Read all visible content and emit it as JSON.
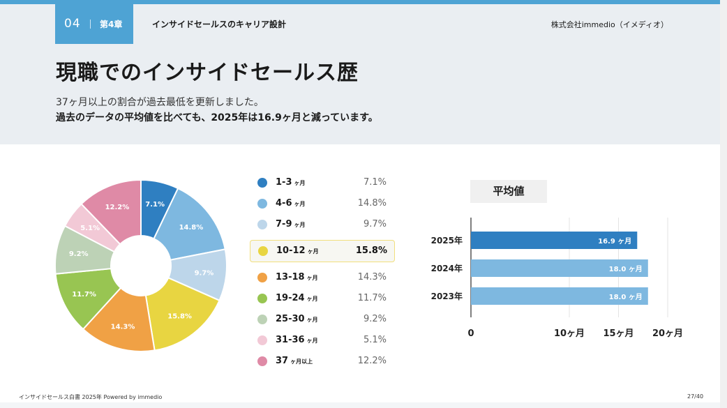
{
  "header": {
    "chapter_number": "04",
    "chapter_label": "第4章",
    "chapter_title": "インサイドセールスのキャリア設計",
    "company": "株式会社immedio（イメディオ）"
  },
  "title": "現職でのインサイドセールス歴",
  "subtitle_line1": "37ヶ月以上の割合が過去最低を更新しました。",
  "subtitle_line2": "過去のデータの平均値を比べても、2025年は16.9ヶ月と減っています。",
  "colors": {
    "accent": "#4ea3d4",
    "bar_2025": "#2f7fc1",
    "bar_past": "#7eb8e0"
  },
  "chart_data": [
    {
      "type": "pie",
      "categories": [
        "1-3",
        "4-6",
        "7-9",
        "10-12",
        "13-18",
        "19-24",
        "25-30",
        "31-36",
        "37"
      ],
      "units": [
        "ヶ月",
        "ヶ月",
        "ヶ月",
        "ヶ月",
        "ヶ月",
        "ヶ月",
        "ヶ月",
        "ヶ月",
        "ヶ月以上"
      ],
      "values": [
        7.1,
        14.8,
        9.7,
        15.8,
        14.3,
        11.7,
        9.2,
        5.1,
        12.2
      ],
      "labels": [
        "7.1%",
        "14.8%",
        "9.7%",
        "15.8%",
        "14.3%",
        "11.7%",
        "9.2%",
        "5.1%",
        "12.2%"
      ],
      "colors": [
        "#2f7fc1",
        "#7eb8e0",
        "#bdd6ea",
        "#e8d541",
        "#f0a145",
        "#98c552",
        "#bdd2b6",
        "#f2c9d6",
        "#df8aa6"
      ],
      "highlight_index": 3,
      "donut": true
    },
    {
      "type": "bar",
      "orientation": "horizontal",
      "title": "平均値",
      "categories": [
        "2025年",
        "2024年",
        "2023年"
      ],
      "values": [
        16.9,
        18.0,
        18.0
      ],
      "labels": [
        "16.9 ヶ月",
        "18.0 ヶ月",
        "18.0 ヶ月"
      ],
      "bar_colors": [
        "#2f7fc1",
        "#7eb8e0",
        "#7eb8e0"
      ],
      "xticks": [
        0,
        10,
        15,
        20
      ],
      "xtick_labels": [
        "0",
        "10ヶ月",
        "15ヶ月",
        "20ヶ月"
      ],
      "grid": true
    }
  ],
  "footer": {
    "left": "インサイドセールス白書 2025年 Powered by immedio",
    "page": "27/40"
  }
}
